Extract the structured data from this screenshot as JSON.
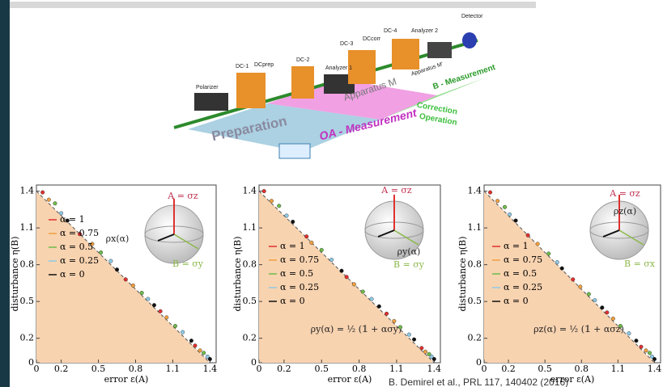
{
  "diagram": {
    "labels": [
      "Polarizer",
      "DC-1",
      "DCprep",
      "DC-2",
      "Analyzer 1",
      "DC-3",
      "DCcorr",
      "DC-4",
      "Analyzer 2",
      "Detector",
      "Apparatus M'",
      "Apparatus M",
      "B - Measurement",
      "Correction",
      "Operation",
      "Preparation",
      "OA - Measurement"
    ]
  },
  "citation": "B. Demirel et al., PRL 117, 140402 (2016)",
  "chart_data": [
    {
      "type": "scatter",
      "xlabel": "error ε(A)",
      "ylabel": "disturbance η(B)",
      "xlim": [
        0,
        1.45
      ],
      "ylim": [
        0,
        1.45
      ],
      "xticks": [
        0,
        0.2,
        0.5,
        0.8,
        1.1,
        1.4
      ],
      "yticks": [
        0,
        0.2,
        0.5,
        0.8,
        1.1,
        1.4
      ],
      "annotations": [
        "A = σz",
        "ρx(α)",
        "B = σy"
      ],
      "series": [
        {
          "name": "α = 1",
          "color": "#e03030",
          "x": [
            0.05,
            0.35,
            0.72,
            1.0,
            1.28
          ],
          "values": [
            1.39,
            1.05,
            0.68,
            0.42,
            0.14
          ]
        },
        {
          "name": "α = 0.75",
          "color": "#f0a040",
          "x": [
            0.1,
            0.45,
            0.78,
            1.05,
            1.32
          ],
          "values": [
            1.33,
            0.97,
            0.63,
            0.37,
            0.1
          ]
        },
        {
          "name": "α = 0.5",
          "color": "#6dbb4a",
          "x": [
            0.15,
            0.52,
            0.85,
            1.12,
            1.35
          ],
          "values": [
            1.3,
            0.9,
            0.57,
            0.3,
            0.08
          ]
        },
        {
          "name": "α = 0.25",
          "color": "#8ecae6",
          "x": [
            0.2,
            0.6,
            0.9,
            1.18,
            1.38
          ],
          "values": [
            1.22,
            0.83,
            0.52,
            0.25,
            0.05
          ]
        },
        {
          "name": "α = 0",
          "color": "#111111",
          "x": [
            0.25,
            0.65,
            0.95,
            1.25,
            1.4
          ],
          "values": [
            1.16,
            0.76,
            0.47,
            0.18,
            0.03
          ]
        }
      ]
    },
    {
      "type": "scatter",
      "xlabel": "error ε(A)",
      "ylabel": "disturbance η(B)",
      "xlim": [
        0,
        1.45
      ],
      "ylim": [
        0,
        1.45
      ],
      "xticks": [
        0,
        0.2,
        0.5,
        0.8,
        1.1,
        1.4
      ],
      "yticks": [
        0,
        0.2,
        0.5,
        0.8,
        1.1,
        1.4
      ],
      "annotations": [
        "A = σz",
        "ρy(α)",
        "B = σy",
        "ρy(α) = ½ (𝟙 + ασy)"
      ],
      "series": [
        {
          "name": "α = 1",
          "color": "#e03030",
          "x": [
            0.04,
            0.38,
            0.7,
            1.02,
            1.3
          ],
          "values": [
            1.4,
            1.03,
            0.7,
            0.4,
            0.12
          ]
        },
        {
          "name": "α = 0.75",
          "color": "#f0a040",
          "x": [
            0.1,
            0.42,
            0.76,
            1.08,
            1.33
          ],
          "values": [
            1.32,
            0.98,
            0.64,
            0.34,
            0.09
          ]
        },
        {
          "name": "α = 0.5",
          "color": "#6dbb4a",
          "x": [
            0.16,
            0.5,
            0.83,
            1.13,
            1.36
          ],
          "values": [
            1.28,
            0.92,
            0.58,
            0.29,
            0.07
          ]
        },
        {
          "name": "α = 0.25",
          "color": "#8ecae6",
          "x": [
            0.22,
            0.58,
            0.9,
            1.2,
            1.38
          ],
          "values": [
            1.2,
            0.84,
            0.52,
            0.23,
            0.05
          ]
        },
        {
          "name": "α = 0",
          "color": "#111111",
          "x": [
            0.27,
            0.66,
            0.96,
            1.24,
            1.4
          ],
          "values": [
            1.15,
            0.75,
            0.46,
            0.19,
            0.03
          ]
        }
      ]
    },
    {
      "type": "scatter",
      "xlabel": "error ε(A)",
      "ylabel": "disturbance η(B)",
      "xlim": [
        0,
        1.45
      ],
      "ylim": [
        0,
        1.45
      ],
      "xticks": [
        0,
        0.2,
        0.5,
        0.8,
        1.1,
        1.4
      ],
      "yticks": [
        0,
        0.2,
        0.5,
        0.8,
        1.1,
        1.4
      ],
      "annotations": [
        "A = σz",
        "ρz(α)",
        "B = σx",
        "ρz(α) = ½ (𝟙 + ασz)"
      ],
      "series": [
        {
          "name": "α = 1",
          "color": "#e03030",
          "x": [
            0.05,
            0.36,
            0.73,
            1.01,
            1.29
          ],
          "values": [
            1.39,
            1.04,
            0.68,
            0.41,
            0.13
          ]
        },
        {
          "name": "α = 0.75",
          "color": "#f0a040",
          "x": [
            0.11,
            0.44,
            0.79,
            1.06,
            1.33
          ],
          "values": [
            1.32,
            0.97,
            0.62,
            0.36,
            0.1
          ]
        },
        {
          "name": "α = 0.5",
          "color": "#6dbb4a",
          "x": [
            0.17,
            0.53,
            0.86,
            1.12,
            1.36
          ],
          "values": [
            1.27,
            0.89,
            0.56,
            0.3,
            0.08
          ]
        },
        {
          "name": "α = 0.25",
          "color": "#8ecae6",
          "x": [
            0.21,
            0.6,
            0.91,
            1.19,
            1.38
          ],
          "values": [
            1.21,
            0.82,
            0.51,
            0.24,
            0.05
          ]
        },
        {
          "name": "α = 0",
          "color": "#111111",
          "x": [
            0.26,
            0.64,
            0.97,
            1.25,
            1.4
          ],
          "values": [
            1.16,
            0.77,
            0.45,
            0.18,
            0.03
          ]
        }
      ]
    }
  ]
}
